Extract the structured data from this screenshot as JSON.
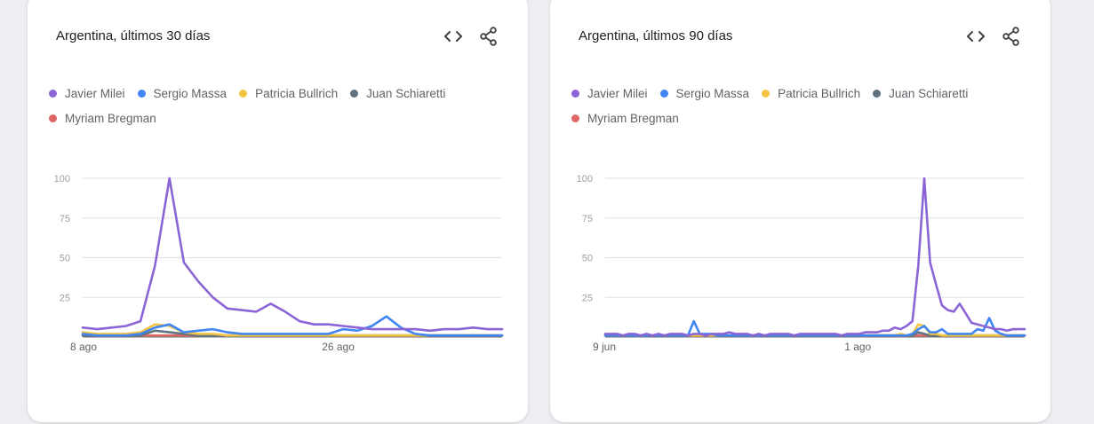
{
  "icons": {
    "embed": "code-brackets-icon",
    "share": "share-icon"
  },
  "colors": {
    "card_bg": "#ffffff",
    "page_bg": "#eceef1",
    "grid": "#e0e0e0",
    "axis": "#757575"
  },
  "chart_data": [
    {
      "type": "line",
      "title": "Argentina, últimos 30 días",
      "x_start_label": "8 ago",
      "x_tick_labels": [
        "8 ago",
        "26 ago"
      ],
      "ylim": [
        0,
        100
      ],
      "y_ticks": [
        25,
        50,
        75,
        100
      ],
      "grid": true,
      "legend_position": "top-left",
      "series": [
        {
          "name": "Javier Milei",
          "color": "#8b64d6",
          "values": [
            6,
            5,
            6,
            7,
            10,
            45,
            100,
            47,
            35,
            25,
            18,
            17,
            16,
            21,
            16,
            10,
            8,
            8,
            7,
            6,
            5,
            5,
            5,
            5,
            4,
            5,
            5,
            6,
            5,
            5
          ]
        },
        {
          "name": "Sergio Massa",
          "color": "#4285f4",
          "values": [
            2,
            1,
            1,
            1,
            2,
            6,
            8,
            3,
            4,
            5,
            3,
            2,
            2,
            2,
            2,
            2,
            2,
            2,
            5,
            4,
            7,
            13,
            6,
            2,
            1,
            1,
            1,
            1,
            1,
            1
          ]
        },
        {
          "name": "Patricia Bullrich",
          "color": "#f4c542",
          "values": [
            3,
            2,
            2,
            2,
            3,
            8,
            7,
            3,
            2,
            2,
            1,
            1,
            1,
            1,
            1,
            1,
            1,
            1,
            1,
            1,
            1,
            1,
            1,
            1,
            1,
            1,
            1,
            1,
            1,
            1
          ]
        },
        {
          "name": "Juan Schiaretti",
          "color": "#5f7280",
          "values": [
            1,
            1,
            1,
            1,
            1,
            4,
            3,
            2,
            1,
            1,
            1,
            1,
            1,
            1,
            1,
            1,
            1,
            1,
            1,
            1,
            1,
            1,
            1,
            1,
            1,
            1,
            1,
            1,
            1,
            1
          ]
        },
        {
          "name": "Myriam Bregman",
          "color": "#e06666",
          "values": [
            1,
            1,
            1,
            1,
            1,
            1,
            1,
            1,
            1,
            1,
            1,
            1,
            1,
            1,
            1,
            1,
            1,
            1,
            1,
            1,
            1,
            1,
            1,
            1,
            1,
            1,
            1,
            1,
            1,
            1
          ]
        }
      ]
    },
    {
      "type": "line",
      "title": "Argentina, últimos 90 días",
      "x_start_label": "9 jun",
      "x_tick_labels": [
        "9 jun",
        "1 ago"
      ],
      "ylim": [
        0,
        100
      ],
      "y_ticks": [
        25,
        50,
        75,
        100
      ],
      "grid": true,
      "legend_position": "top-left",
      "series": [
        {
          "name": "Javier Milei",
          "color": "#8b64d6",
          "values": [
            2,
            2,
            2,
            1,
            2,
            2,
            1,
            2,
            1,
            2,
            1,
            2,
            2,
            2,
            1,
            2,
            2,
            1,
            2,
            2,
            2,
            3,
            2,
            2,
            2,
            1,
            2,
            1,
            2,
            2,
            2,
            2,
            1,
            2,
            2,
            2,
            2,
            2,
            2,
            2,
            1,
            2,
            2,
            2,
            3,
            3,
            3,
            4,
            4,
            6,
            5,
            7,
            10,
            45,
            100,
            47,
            33,
            20,
            17,
            16,
            21,
            15,
            9,
            8,
            7,
            6,
            5,
            5,
            4,
            5,
            5,
            5
          ]
        },
        {
          "name": "Sergio Massa",
          "color": "#4285f4",
          "values": [
            1,
            1,
            1,
            1,
            1,
            1,
            1,
            1,
            1,
            1,
            1,
            1,
            1,
            1,
            1,
            10,
            2,
            2,
            2,
            1,
            1,
            1,
            1,
            1,
            1,
            1,
            1,
            1,
            1,
            1,
            1,
            1,
            1,
            1,
            1,
            1,
            1,
            1,
            1,
            1,
            1,
            1,
            1,
            1,
            1,
            1,
            1,
            1,
            1,
            1,
            1,
            1,
            2,
            5,
            7,
            3,
            3,
            5,
            2,
            2,
            2,
            2,
            2,
            5,
            4,
            12,
            4,
            2,
            1,
            1,
            1,
            1
          ]
        },
        {
          "name": "Patricia Bullrich",
          "color": "#f4c542",
          "values": [
            1,
            1,
            1,
            1,
            1,
            1,
            1,
            1,
            1,
            1,
            1,
            1,
            1,
            1,
            1,
            1,
            1,
            1,
            1,
            1,
            1,
            1,
            1,
            1,
            1,
            1,
            1,
            1,
            1,
            1,
            1,
            1,
            1,
            1,
            1,
            1,
            1,
            1,
            1,
            1,
            1,
            1,
            1,
            1,
            1,
            1,
            1,
            1,
            1,
            1,
            2,
            1,
            2,
            8,
            7,
            2,
            2,
            1,
            1,
            1,
            1,
            1,
            1,
            1,
            1,
            1,
            1,
            1,
            1,
            1,
            1,
            1
          ]
        },
        {
          "name": "Juan Schiaretti",
          "color": "#5f7280",
          "values": [
            1,
            1,
            1,
            1,
            1,
            1,
            1,
            1,
            1,
            1,
            1,
            1,
            1,
            1,
            1,
            1,
            1,
            1,
            1,
            1,
            1,
            1,
            1,
            1,
            1,
            1,
            1,
            1,
            1,
            1,
            1,
            1,
            1,
            1,
            1,
            1,
            1,
            1,
            1,
            1,
            1,
            1,
            1,
            1,
            1,
            1,
            1,
            1,
            1,
            1,
            1,
            1,
            1,
            3,
            2,
            1,
            1,
            1,
            1,
            1,
            1,
            1,
            1,
            1,
            1,
            1,
            1,
            1,
            1,
            1,
            1,
            1
          ]
        },
        {
          "name": "Myriam Bregman",
          "color": "#e06666",
          "values": [
            1,
            1,
            1,
            1,
            1,
            1,
            1,
            1,
            1,
            1,
            1,
            1,
            1,
            1,
            1,
            1,
            1,
            1,
            1,
            1,
            1,
            1,
            1,
            1,
            1,
            1,
            1,
            1,
            1,
            1,
            1,
            1,
            1,
            1,
            1,
            1,
            1,
            1,
            1,
            1,
            1,
            1,
            1,
            1,
            1,
            1,
            1,
            1,
            1,
            1,
            1,
            1,
            1,
            1,
            1,
            1,
            1,
            1,
            1,
            1,
            1,
            1,
            1,
            1,
            1,
            1,
            1,
            1,
            1,
            1,
            1,
            1
          ]
        }
      ]
    }
  ]
}
